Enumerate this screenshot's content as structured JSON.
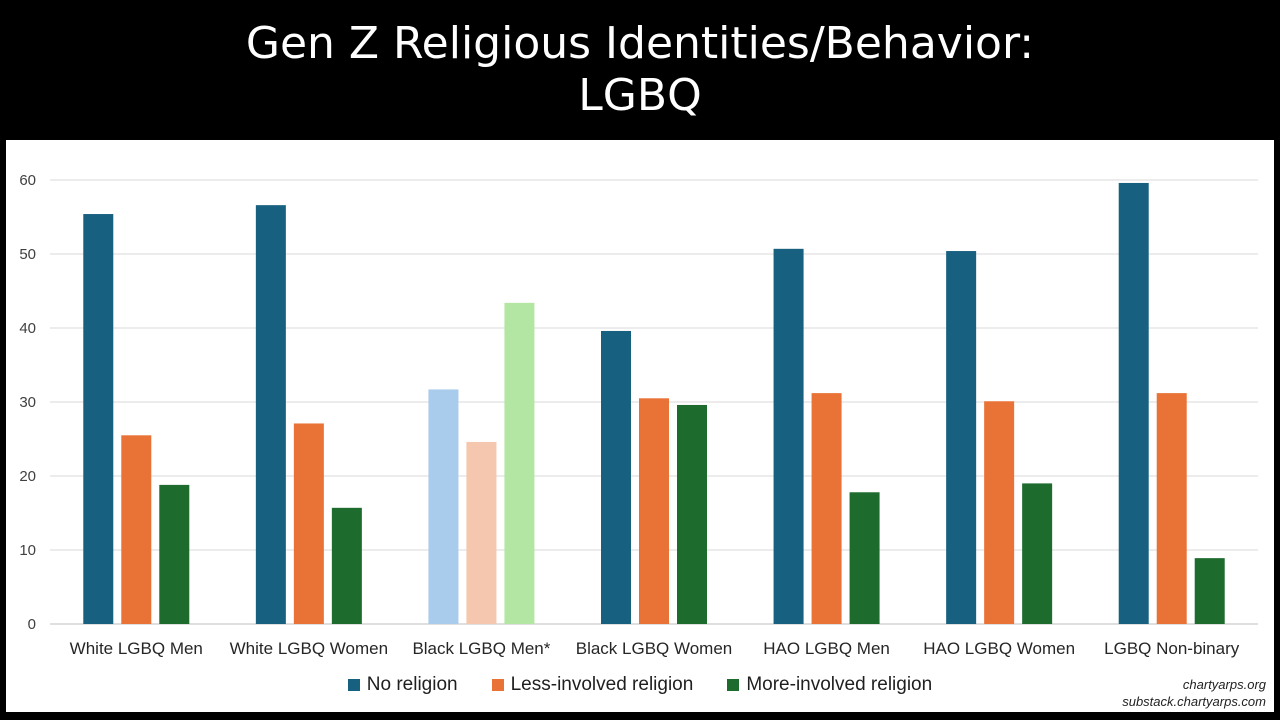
{
  "title_lines": [
    "Gen Z Religious Identities/Behavior:",
    "LGBQ"
  ],
  "credits": [
    "chartyarps.org",
    "substack.chartyarps.com"
  ],
  "colors": {
    "background": "#000000",
    "no_religion": "#17607f",
    "less_involved": "#e97236",
    "more_involved": "#1e6b2e",
    "no_religion_light": "#a9cbec",
    "less_involved_light": "#f5c7ae",
    "more_involved_light": "#b3e6a2"
  },
  "chart_data": {
    "type": "bar",
    "title": "Gen Z Religious Identities/Behavior: LGBQ",
    "xlabel": "",
    "ylabel": "",
    "ylim": [
      0,
      60
    ],
    "yticks": [
      0,
      10,
      20,
      30,
      40,
      50,
      60
    ],
    "grid": true,
    "legend_position": "bottom",
    "categories": [
      "White LGBQ Men",
      "White LGBQ Women",
      "Black LGBQ Men*",
      "Black LGBQ Women",
      "HAO LGBQ Men",
      "HAO LGBQ Women",
      "LGBQ Non-binary"
    ],
    "faded_categories": [
      "Black LGBQ Men*"
    ],
    "series": [
      {
        "name": "No religion",
        "values": [
          55.4,
          56.6,
          31.7,
          39.6,
          50.7,
          50.4,
          59.6
        ]
      },
      {
        "name": "Less-involved religion",
        "values": [
          25.5,
          27.1,
          24.6,
          30.5,
          31.2,
          30.1,
          31.2
        ]
      },
      {
        "name": "More-involved religion",
        "values": [
          18.8,
          15.7,
          43.4,
          29.6,
          17.8,
          19.0,
          8.9
        ]
      }
    ]
  }
}
